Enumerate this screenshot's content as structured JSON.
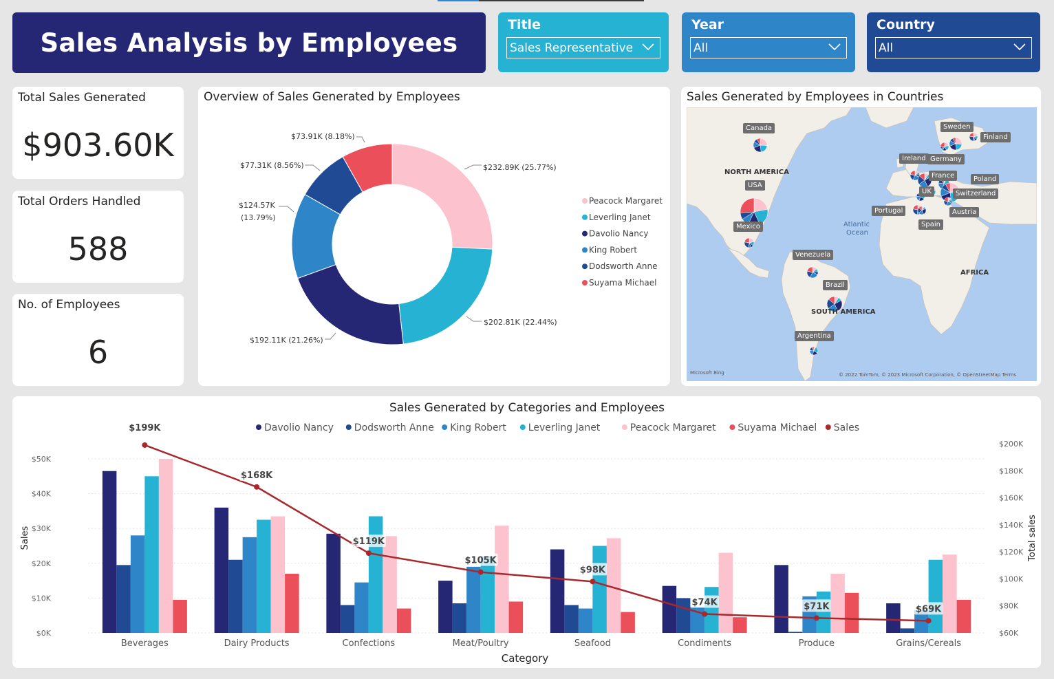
{
  "header": {
    "title": "Sales Analysis by Employees"
  },
  "slicers": {
    "title": {
      "label": "Title",
      "value": "Sales Representative"
    },
    "year": {
      "label": "Year",
      "value": "All"
    },
    "country": {
      "label": "Country",
      "value": "All"
    }
  },
  "kpis": {
    "total_sales": {
      "label": "Total Sales Generated",
      "value": "$903.60K"
    },
    "total_orders": {
      "label": "Total Orders Handled",
      "value": "588"
    },
    "employees": {
      "label": "No. of Employees",
      "value": "6"
    }
  },
  "colors": {
    "davolio": "#252775",
    "dodsworth": "#204a93",
    "king": "#2e86c9",
    "leverling": "#25b2d3",
    "peacock": "#fcc2ce",
    "suyama": "#ea4f5a",
    "sales": "#a8282c"
  },
  "donut": {
    "title": "Overview of Sales Generated by Employees",
    "legend": [
      "Peacock Margaret",
      "Leverling Janet",
      "Davolio Nancy",
      "King Robert",
      "Dodsworth Anne",
      "Suyama Michael"
    ],
    "labels": {
      "peacock": "$232.89K (25.77%)",
      "leverling": "$202.81K (22.44%)",
      "davolio": "$192.11K (21.26%)",
      "king_1": "$124.57K",
      "king_2": "(13.79%)",
      "dodsworth": "$77.31K (8.56%)",
      "suyama": "$73.91K (8.18%)"
    }
  },
  "map": {
    "title": "Sales Generated by Employees in Countries",
    "countries": [
      "Canada",
      "USA",
      "Mexico",
      "Venezuela",
      "Brazil",
      "Argentina",
      "Sweden",
      "Finland",
      "Ireland",
      "Germany",
      "France",
      "Poland",
      "UK",
      "Switzerland",
      "Portugal",
      "Austria",
      "Spain"
    ],
    "regions": [
      "NORTH AMERICA",
      "SOUTH AMERICA",
      "AFRICA"
    ],
    "ocean_1": "Atlantic",
    "ocean_2": "Ocean",
    "bing": "Microsoft Bing",
    "copyright": "© 2022 TomTom, © 2023 Microsoft Corporation, © OpenStreetMap  Terms"
  },
  "chart_data": [
    {
      "type": "pie",
      "title": "Overview of Sales Generated by Employees",
      "categories": [
        "Peacock Margaret",
        "Leverling Janet",
        "Davolio Nancy",
        "King Robert",
        "Dodsworth Anne",
        "Suyama Michael"
      ],
      "values": [
        232.89,
        202.81,
        192.11,
        124.57,
        77.31,
        73.91
      ],
      "percents": [
        25.77,
        22.44,
        21.26,
        13.79,
        8.56,
        8.18
      ],
      "unit": "$K"
    },
    {
      "type": "bar",
      "title": "Sales Generated by Categories and Employees",
      "xlabel": "Category",
      "ylabel": "Sales",
      "y2label": "Total sales",
      "ylim": [
        0,
        50000
      ],
      "y2lim": [
        60000,
        200000
      ],
      "yticks": [
        "$0K",
        "$10K",
        "$20K",
        "$30K",
        "$40K",
        "$50K"
      ],
      "y2ticks": [
        "$60K",
        "$80K",
        "$100K",
        "$120K",
        "$140K",
        "$160K",
        "$180K",
        "$200K"
      ],
      "categories": [
        "Beverages",
        "Dairy Products",
        "Confections",
        "Meat/Poultry",
        "Seafood",
        "Condiments",
        "Produce",
        "Grains/Cereals"
      ],
      "series": [
        {
          "name": "Davolio Nancy",
          "values": [
            46500,
            36000,
            28500,
            15000,
            24000,
            13500,
            19500,
            8500
          ]
        },
        {
          "name": "Dodsworth Anne",
          "values": [
            19500,
            21000,
            8000,
            8500,
            8000,
            10000,
            300,
            1300
          ]
        },
        {
          "name": "King Robert",
          "values": [
            28000,
            27500,
            14500,
            19000,
            7000,
            7500,
            10500,
            6500
          ]
        },
        {
          "name": "Leverling Janet",
          "values": [
            45000,
            32500,
            33500,
            22000,
            25000,
            13200,
            11900,
            21000
          ]
        },
        {
          "name": "Peacock Margaret",
          "values": [
            50000,
            33500,
            27800,
            30800,
            27200,
            23000,
            17000,
            22500
          ]
        },
        {
          "name": "Suyama Michael",
          "values": [
            9500,
            17000,
            7000,
            9000,
            6000,
            4500,
            11500,
            9500
          ]
        }
      ],
      "line": {
        "name": "Sales",
        "values": [
          199000,
          168000,
          119000,
          105000,
          98000,
          74000,
          71000,
          69000
        ],
        "labels": [
          "$199K",
          "$168K",
          "$119K",
          "$105K",
          "$98K",
          "$74K",
          "$71K",
          "$69K"
        ]
      }
    }
  ]
}
